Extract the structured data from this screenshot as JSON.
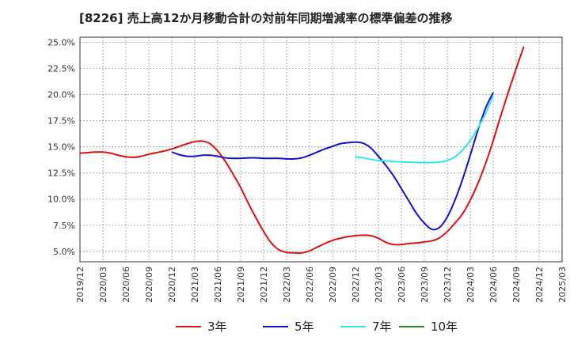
{
  "title": "[8226]  売上高12か月移動合計の対前年同期増減率の標準偏差の推移",
  "chart_data": {
    "type": "line",
    "title": "[8226]  売上高12か月移動合計の対前年同期増減率の標準偏差の推移",
    "xlabel": "",
    "ylabel": "",
    "ylim": [
      4.0,
      25.5
    ],
    "yticks": [
      5.0,
      7.5,
      10.0,
      12.5,
      15.0,
      17.5,
      20.0,
      22.5,
      25.0
    ],
    "ytick_labels": [
      "5.0%",
      "7.5%",
      "10.0%",
      "12.5%",
      "15.0%",
      "17.5%",
      "20.0%",
      "22.5%",
      "25.0%"
    ],
    "xticks": [
      "2019/12",
      "2020/03",
      "2020/06",
      "2020/09",
      "2020/12",
      "2021/03",
      "2021/06",
      "2021/09",
      "2021/12",
      "2022/03",
      "2022/06",
      "2022/09",
      "2022/12",
      "2023/03",
      "2023/06",
      "2023/09",
      "2023/12",
      "2024/03",
      "2024/06",
      "2024/09",
      "2024/12",
      "2025/03"
    ],
    "grid": true,
    "legend": "bottom",
    "series": [
      {
        "name": "3年",
        "color": "#dd1111",
        "points": [
          [
            "2019/12",
            14.4
          ],
          [
            "2020/01",
            14.45
          ],
          [
            "2020/02",
            14.5
          ],
          [
            "2020/03",
            14.5
          ],
          [
            "2020/04",
            14.4
          ],
          [
            "2020/05",
            14.2
          ],
          [
            "2020/06",
            14.05
          ],
          [
            "2020/07",
            14.0
          ],
          [
            "2020/08",
            14.1
          ],
          [
            "2020/09",
            14.3
          ],
          [
            "2020/10",
            14.45
          ],
          [
            "2020/11",
            14.6
          ],
          [
            "2020/12",
            14.8
          ],
          [
            "2021/01",
            15.05
          ],
          [
            "2021/02",
            15.3
          ],
          [
            "2021/03",
            15.5
          ],
          [
            "2021/04",
            15.55
          ],
          [
            "2021/05",
            15.3
          ],
          [
            "2021/06",
            14.6
          ],
          [
            "2021/07",
            13.6
          ],
          [
            "2021/08",
            12.4
          ],
          [
            "2021/09",
            11.1
          ],
          [
            "2021/10",
            9.6
          ],
          [
            "2021/11",
            8.2
          ],
          [
            "2021/12",
            6.9
          ],
          [
            "2022/01",
            5.8
          ],
          [
            "2022/02",
            5.15
          ],
          [
            "2022/03",
            4.9
          ],
          [
            "2022/04",
            4.85
          ],
          [
            "2022/05",
            4.85
          ],
          [
            "2022/06",
            5.05
          ],
          [
            "2022/07",
            5.4
          ],
          [
            "2022/08",
            5.75
          ],
          [
            "2022/09",
            6.05
          ],
          [
            "2022/10",
            6.25
          ],
          [
            "2022/11",
            6.4
          ],
          [
            "2022/12",
            6.5
          ],
          [
            "2023/01",
            6.55
          ],
          [
            "2023/02",
            6.5
          ],
          [
            "2023/03",
            6.25
          ],
          [
            "2023/04",
            5.85
          ],
          [
            "2023/05",
            5.65
          ],
          [
            "2023/06",
            5.65
          ],
          [
            "2023/07",
            5.75
          ],
          [
            "2023/08",
            5.8
          ],
          [
            "2023/09",
            5.9
          ],
          [
            "2023/10",
            6.0
          ],
          [
            "2023/11",
            6.3
          ],
          [
            "2023/12",
            6.9
          ],
          [
            "2024/01",
            7.7
          ],
          [
            "2024/02",
            8.6
          ],
          [
            "2024/03",
            9.9
          ],
          [
            "2024/04",
            11.5
          ],
          [
            "2024/05",
            13.4
          ],
          [
            "2024/06",
            15.6
          ],
          [
            "2024/07",
            18.0
          ],
          [
            "2024/08",
            20.3
          ],
          [
            "2024/09",
            22.5
          ],
          [
            "2024/10",
            24.6
          ]
        ]
      },
      {
        "name": "5年",
        "color": "#1111cc",
        "points": [
          [
            "2020/12",
            14.5
          ],
          [
            "2021/01",
            14.25
          ],
          [
            "2021/02",
            14.1
          ],
          [
            "2021/03",
            14.1
          ],
          [
            "2021/04",
            14.2
          ],
          [
            "2021/05",
            14.2
          ],
          [
            "2021/06",
            14.1
          ],
          [
            "2021/07",
            13.95
          ],
          [
            "2021/08",
            13.9
          ],
          [
            "2021/09",
            13.9
          ],
          [
            "2021/10",
            13.95
          ],
          [
            "2021/11",
            13.95
          ],
          [
            "2021/12",
            13.9
          ],
          [
            "2022/01",
            13.9
          ],
          [
            "2022/02",
            13.9
          ],
          [
            "2022/03",
            13.85
          ],
          [
            "2022/04",
            13.85
          ],
          [
            "2022/05",
            13.95
          ],
          [
            "2022/06",
            14.2
          ],
          [
            "2022/07",
            14.5
          ],
          [
            "2022/08",
            14.8
          ],
          [
            "2022/09",
            15.05
          ],
          [
            "2022/10",
            15.3
          ],
          [
            "2022/11",
            15.4
          ],
          [
            "2022/12",
            15.45
          ],
          [
            "2023/01",
            15.35
          ],
          [
            "2023/02",
            14.9
          ],
          [
            "2023/03",
            14.1
          ],
          [
            "2023/04",
            13.2
          ],
          [
            "2023/05",
            12.2
          ],
          [
            "2023/06",
            11.0
          ],
          [
            "2023/07",
            9.8
          ],
          [
            "2023/08",
            8.6
          ],
          [
            "2023/09",
            7.7
          ],
          [
            "2023/10",
            7.1
          ],
          [
            "2023/11",
            7.3
          ],
          [
            "2023/12",
            8.3
          ],
          [
            "2024/01",
            9.9
          ],
          [
            "2024/02",
            11.9
          ],
          [
            "2024/03",
            14.2
          ],
          [
            "2024/04",
            16.6
          ],
          [
            "2024/05",
            18.7
          ],
          [
            "2024/06",
            20.2
          ]
        ]
      },
      {
        "name": "7年",
        "color": "#33e5f2",
        "points": [
          [
            "2022/12",
            14.05
          ],
          [
            "2023/01",
            13.95
          ],
          [
            "2023/02",
            13.8
          ],
          [
            "2023/03",
            13.7
          ],
          [
            "2023/04",
            13.65
          ],
          [
            "2023/05",
            13.6
          ],
          [
            "2023/06",
            13.55
          ],
          [
            "2023/07",
            13.55
          ],
          [
            "2023/08",
            13.5
          ],
          [
            "2023/09",
            13.5
          ],
          [
            "2023/10",
            13.5
          ],
          [
            "2023/11",
            13.55
          ],
          [
            "2023/12",
            13.7
          ],
          [
            "2024/01",
            14.05
          ],
          [
            "2024/02",
            14.7
          ],
          [
            "2024/03",
            15.6
          ],
          [
            "2024/04",
            16.8
          ],
          [
            "2024/05",
            18.2
          ],
          [
            "2024/06",
            19.9
          ]
        ]
      },
      {
        "name": "10年",
        "color": "#228822",
        "points": []
      }
    ]
  }
}
